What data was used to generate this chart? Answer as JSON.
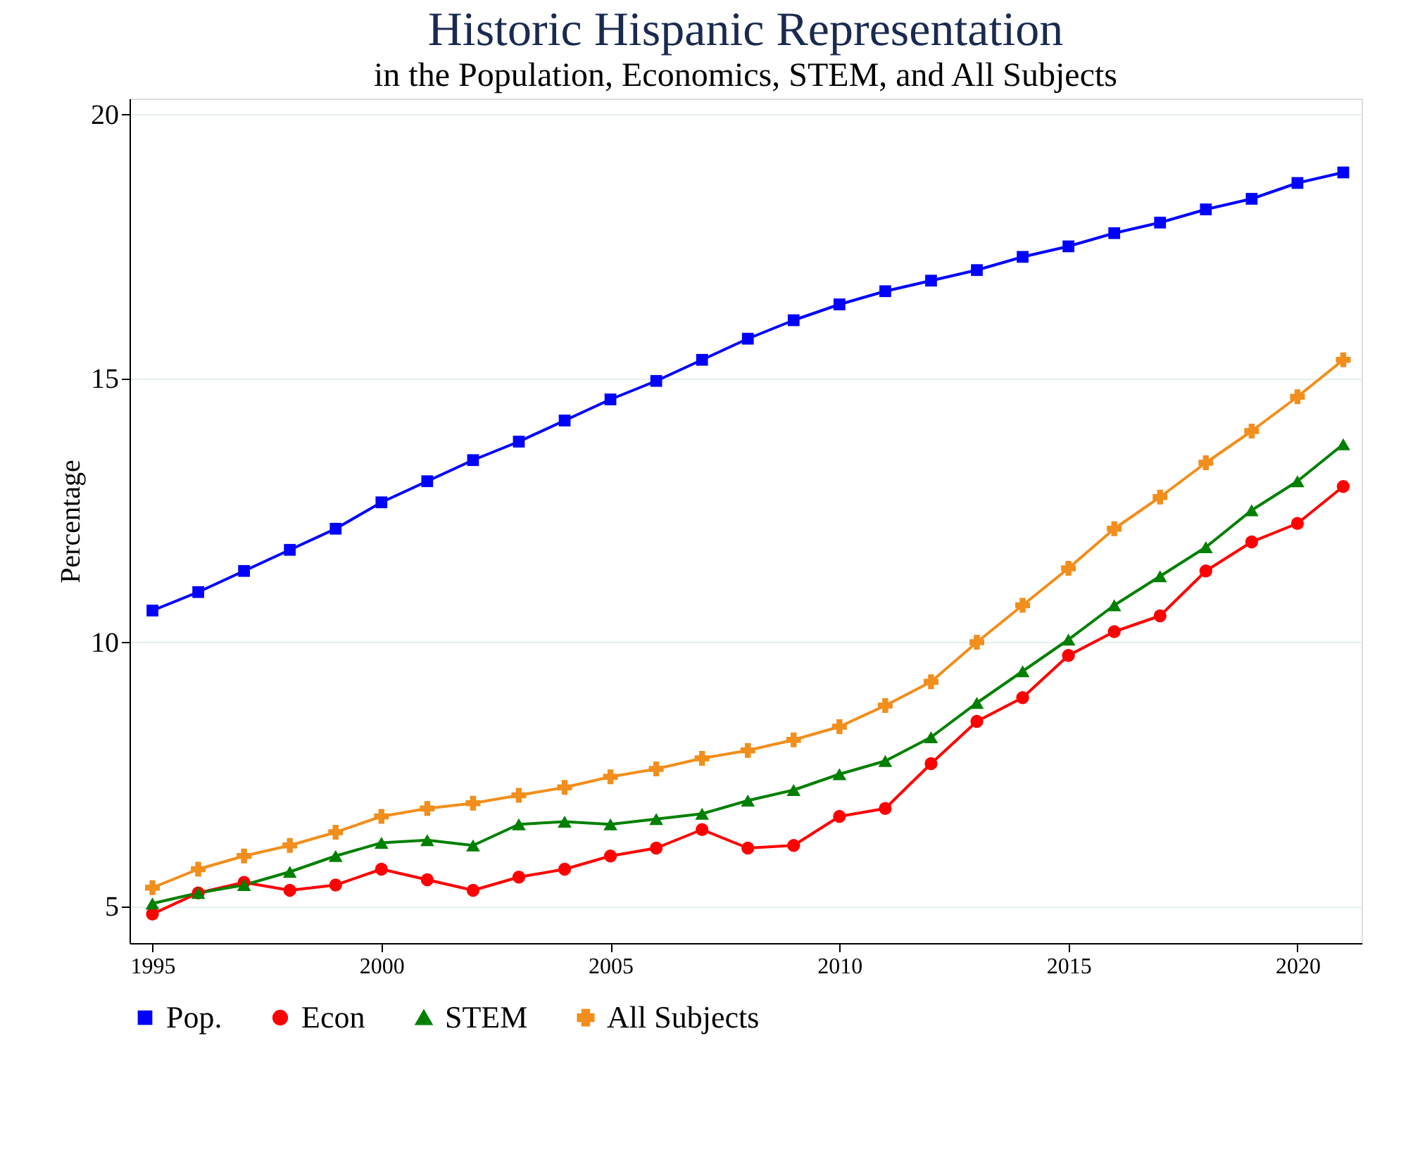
{
  "chart_data": {
    "type": "line",
    "title": "Historic Hispanic Representation",
    "subtitle": "in the Population, Economics, STEM, and All Subjects",
    "ylabel": "Percentage",
    "x": [
      1995,
      1996,
      1997,
      1998,
      1999,
      2000,
      2001,
      2002,
      2003,
      2004,
      2005,
      2006,
      2007,
      2008,
      2009,
      2010,
      2011,
      2012,
      2013,
      2014,
      2015,
      2016,
      2017,
      2018,
      2019,
      2020,
      2021
    ],
    "series": [
      {
        "name": "Pop.",
        "color": "#0000ff",
        "marker": "square",
        "values": [
          10.6,
          10.95,
          11.35,
          11.75,
          12.15,
          12.65,
          13.05,
          13.45,
          13.8,
          14.2,
          14.6,
          14.95,
          15.35,
          15.75,
          16.1,
          16.4,
          16.65,
          16.85,
          17.05,
          17.3,
          17.5,
          17.75,
          17.95,
          18.2,
          18.4,
          18.7,
          18.9
        ]
      },
      {
        "name": "Econ",
        "color": "#ff0000",
        "marker": "circle",
        "values": [
          4.85,
          5.25,
          5.45,
          5.3,
          5.4,
          5.7,
          5.5,
          5.3,
          5.55,
          5.7,
          5.95,
          6.1,
          6.45,
          6.1,
          6.15,
          6.7,
          6.85,
          7.7,
          8.5,
          8.95,
          9.75,
          10.2,
          10.5,
          11.35,
          11.9,
          12.25,
          12.95
        ]
      },
      {
        "name": "STEM",
        "color": "#008000",
        "marker": "triangle",
        "values": [
          5.05,
          5.25,
          5.4,
          5.65,
          5.95,
          6.2,
          6.25,
          6.15,
          6.55,
          6.6,
          6.55,
          6.65,
          6.75,
          7.0,
          7.2,
          7.5,
          7.75,
          8.2,
          8.85,
          9.45,
          10.05,
          10.7,
          11.25,
          11.8,
          12.5,
          13.05,
          13.75
        ]
      },
      {
        "name": "All Subjects",
        "color": "#f28e1c",
        "marker": "cross",
        "values": [
          5.35,
          5.7,
          5.95,
          6.15,
          6.4,
          6.7,
          6.85,
          6.95,
          7.1,
          7.25,
          7.45,
          7.6,
          7.8,
          7.95,
          8.15,
          8.4,
          8.8,
          9.25,
          10.0,
          10.7,
          11.4,
          12.15,
          12.75,
          13.4,
          14.0,
          14.65,
          15.35
        ]
      }
    ],
    "xlim": [
      1994.5,
      2021.4
    ],
    "xticks": [
      1995,
      2000,
      2005,
      2010,
      2015,
      2020
    ],
    "ylim": [
      4.3,
      20.3
    ],
    "yticks": [
      5,
      10,
      15,
      20
    ],
    "grid": "y",
    "legend": "bottom",
    "line_style": "solid"
  }
}
